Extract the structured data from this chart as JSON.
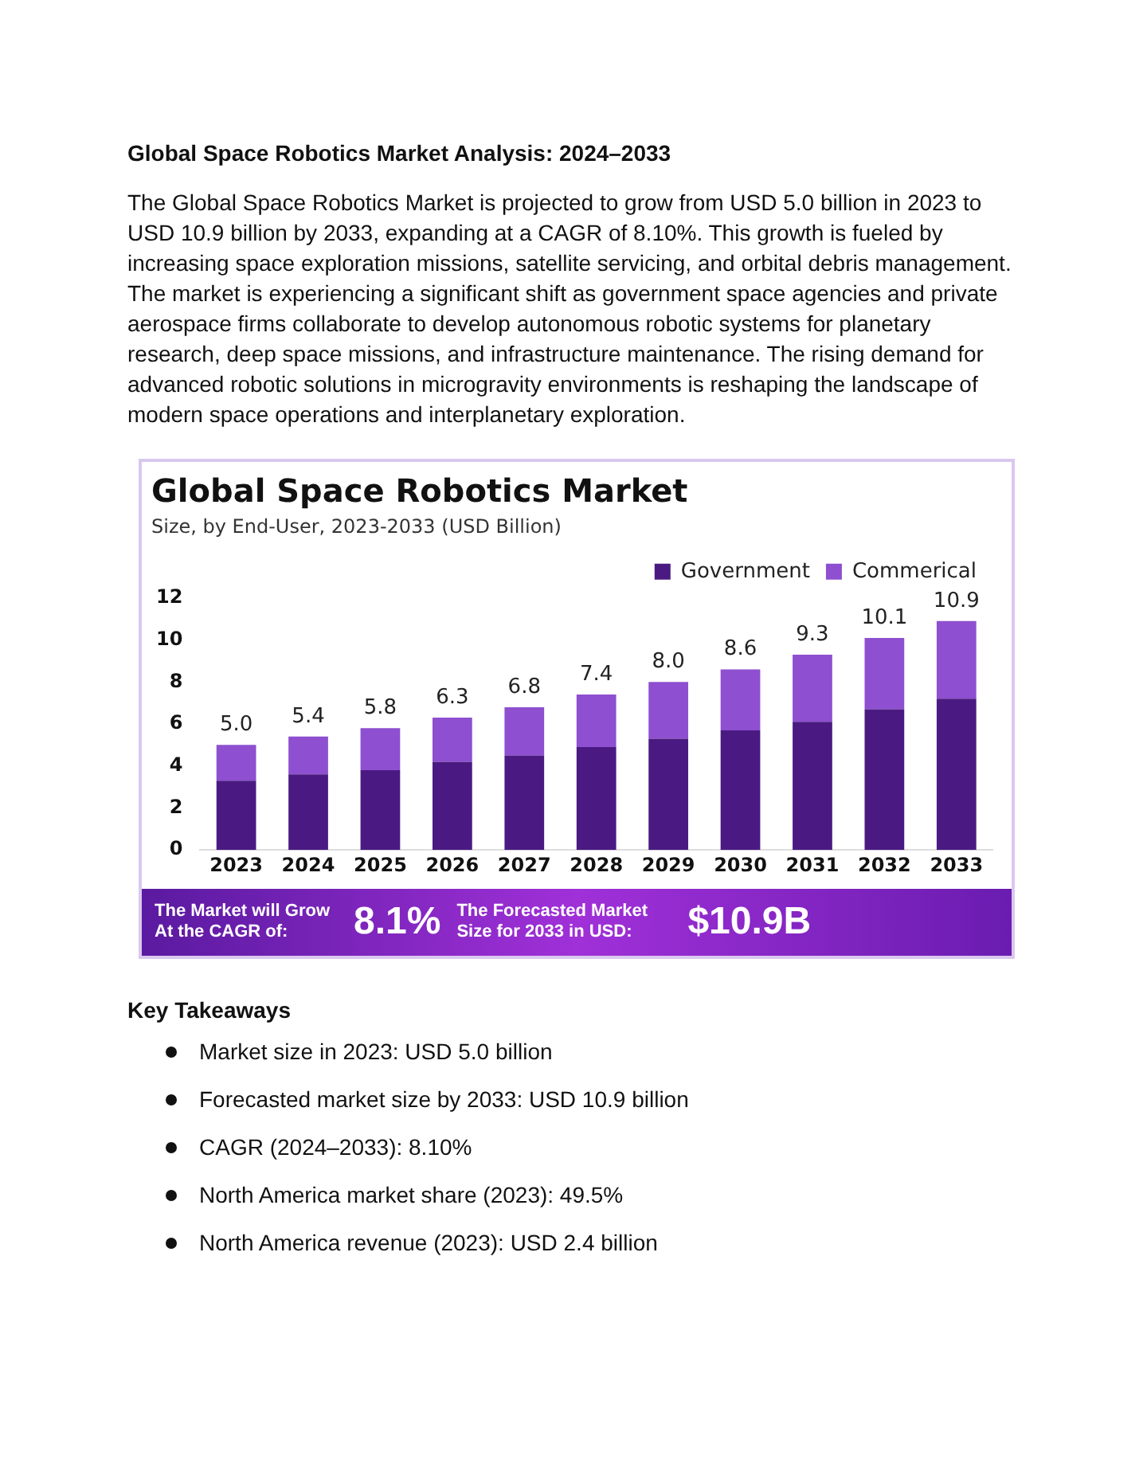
{
  "chart_data": {
    "type": "bar",
    "title": "Global Space Robotics Market",
    "subtitle": "Size, by End-User, 2023-2033 (USD Billion)",
    "categories": [
      "2023",
      "2024",
      "2025",
      "2026",
      "2027",
      "2028",
      "2029",
      "2030",
      "2031",
      "2032",
      "2033"
    ],
    "series": [
      {
        "name": "Government",
        "color": "#4a1a82",
        "values": [
          3.3,
          3.6,
          3.8,
          4.2,
          4.5,
          4.9,
          5.3,
          5.7,
          6.1,
          6.7,
          7.2
        ]
      },
      {
        "name": "Commerical",
        "color": "#8e4fd0",
        "values": [
          1.7,
          1.8,
          2.0,
          2.1,
          2.3,
          2.5,
          2.7,
          2.9,
          3.2,
          3.4,
          3.7
        ]
      }
    ],
    "stacked": true,
    "totals": [
      "5.0",
      "5.4",
      "5.8",
      "6.3",
      "6.8",
      "7.4",
      "8.0",
      "8.6",
      "9.3",
      "10.1",
      "10.9"
    ],
    "ylim": [
      0,
      12
    ],
    "yticks": [
      0,
      2,
      4,
      6,
      8,
      10,
      12
    ],
    "grid": false,
    "legend": "top right",
    "annotations": [
      "Global Space Robotics Market Analysis: 2024–2033",
      "The Global Space Robotics Market is projected to grow from USD 5.0 billion in 2023 to USD 10.9 billion by 2033, expanding at a CAGR of 8.10%. This growth is fueled by increasing space exploration missions, satellite servicing, and orbital debris management. The market is experiencing a significant shift as government space agencies and private aerospace firms collaborate to develop autonomous robotic systems for planetary research, deep space missions, and infrastructure maintenance. The rising demand for advanced robotic solutions in microgravity environments is reshaping the landscape of modern space operations and interplanetary exploration.",
      "The Market will Grow At the CAGR of:",
      "8.1%",
      "The Forecasted Market Size for 2033 in USD:",
      "$10.9B",
      "Key Takeaways",
      "Market size in 2023: USD 5.0 billion",
      "Forecasted market size by 2033: USD 10.9 billion",
      "CAGR (2024–2033): 8.10%",
      "North America market share (2023): 49.5%",
      "North America revenue (2023): USD 2.4 billion"
    ]
  }
}
